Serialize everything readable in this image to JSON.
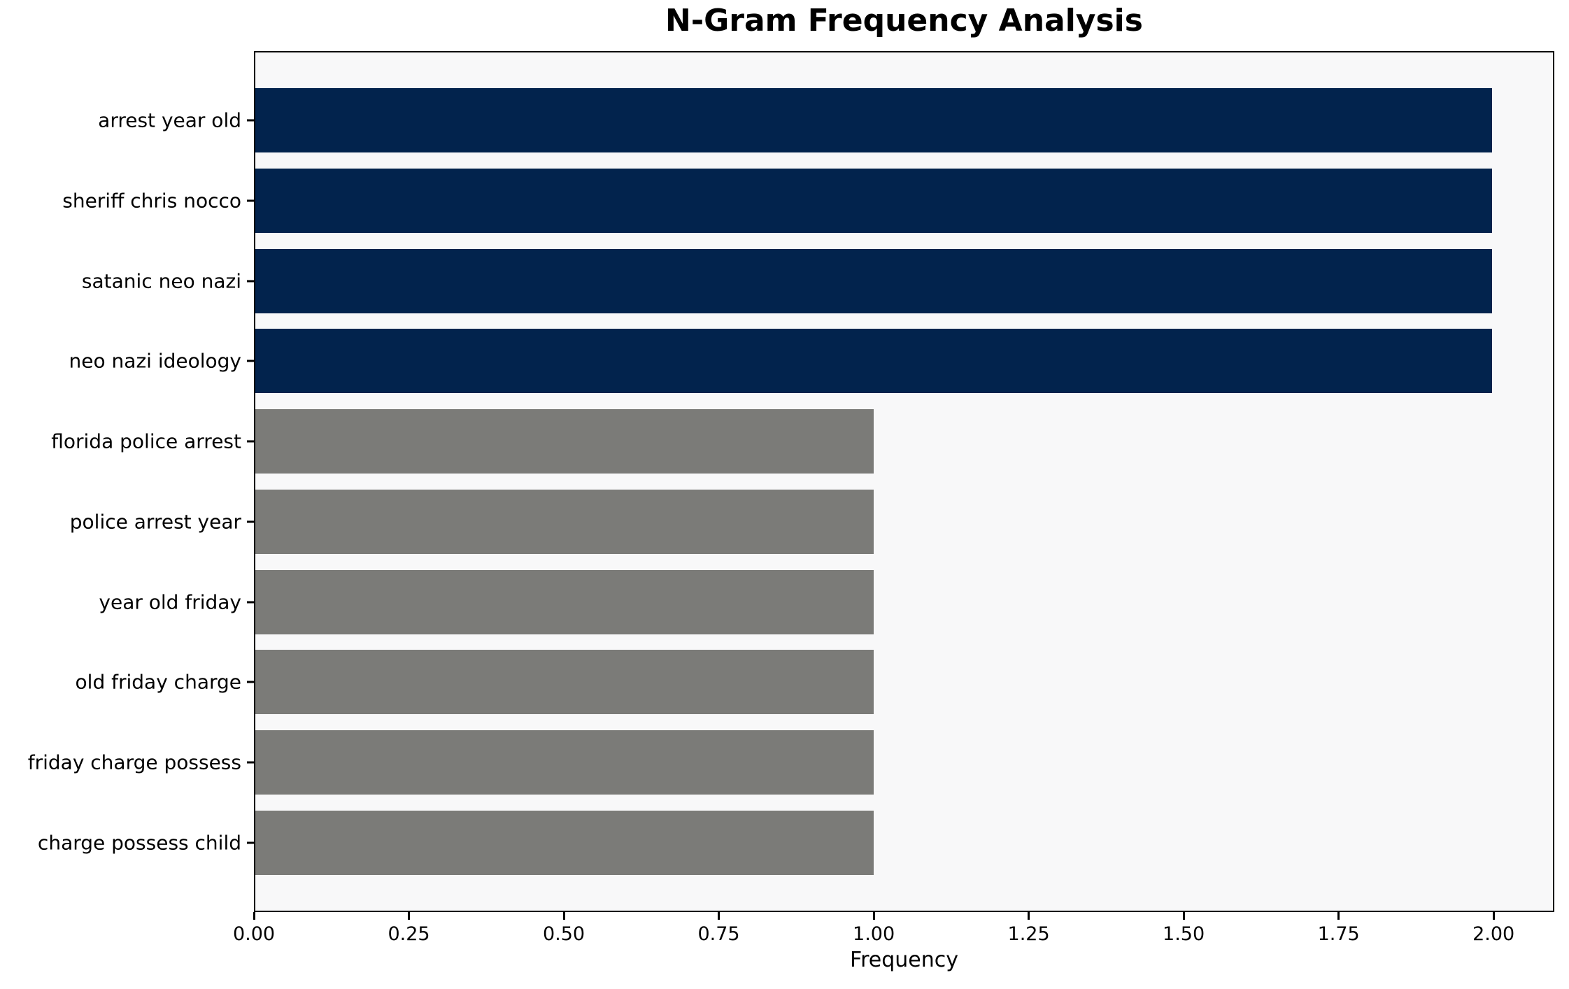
{
  "figure": {
    "background_color": "#ffffff",
    "plot_background_color": "#f8f8f9",
    "spine_color": "#000000",
    "text_color": "#000000"
  },
  "chart_data": {
    "type": "bar",
    "orientation": "horizontal",
    "title": "N-Gram Frequency Analysis",
    "xlabel": "Frequency",
    "ylabel": "",
    "categories": [
      "arrest year old",
      "sheriff chris nocco",
      "satanic neo nazi",
      "neo nazi ideology",
      "florida police arrest",
      "police arrest year",
      "year old friday",
      "old friday charge",
      "friday charge possess",
      "charge possess child"
    ],
    "values": [
      2,
      2,
      2,
      2,
      1,
      1,
      1,
      1,
      1,
      1
    ],
    "bar_colors": [
      "#02234d",
      "#02234d",
      "#02234d",
      "#02234d",
      "#7b7b78",
      "#7b7b78",
      "#7b7b78",
      "#7b7b78",
      "#7b7b78",
      "#7b7b78"
    ],
    "accent_color_high": "#02234d",
    "accent_color_low": "#7b7b78",
    "xlim": [
      0,
      2.098
    ],
    "xticks": [
      0.0,
      0.25,
      0.5,
      0.75,
      1.0,
      1.25,
      1.5,
      1.75,
      2.0
    ],
    "xtick_labels": [
      "0.00",
      "0.25",
      "0.50",
      "0.75",
      "1.00",
      "1.25",
      "1.50",
      "1.75",
      "2.00"
    ],
    "grid": false,
    "legend": false
  }
}
